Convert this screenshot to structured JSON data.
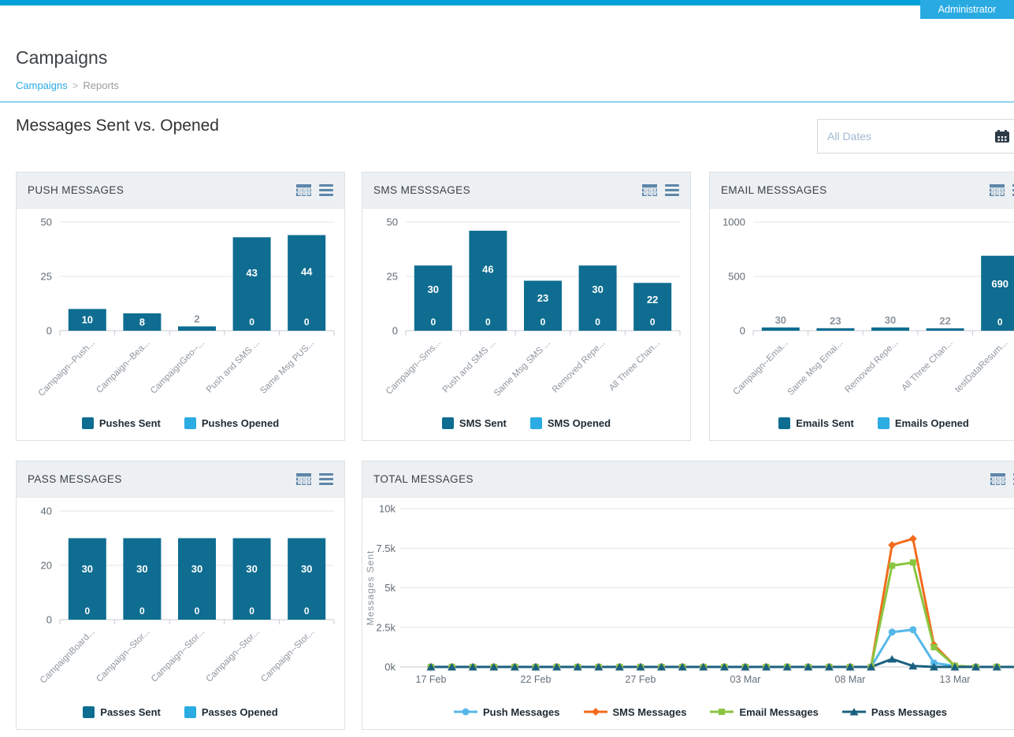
{
  "topbar": {
    "admin_label": "Administrator"
  },
  "page": {
    "title": "Campaigns",
    "breadcrumb": {
      "home": "Campaigns",
      "sep": ">",
      "current": "Reports"
    },
    "section_title": "Messages Sent vs. Opened"
  },
  "date_filter": {
    "value": "All Dates"
  },
  "colors": {
    "topstrip": "#00a3d9",
    "accent": "#29abe2",
    "bar_sent": "#0e6d91",
    "bar_opened": "#2bace2",
    "icon": "#5d86a9"
  },
  "chart_data": [
    {
      "id": "push",
      "type": "bar",
      "title": "PUSH MESSAGES",
      "categories": [
        "Campaign--Push...",
        "Campaign--Bea...",
        "CampaignGeo--...",
        "Push and SMS ...",
        "Same Msg PUS..."
      ],
      "series": [
        {
          "name": "Pushes Sent",
          "color": "#0e6d91",
          "values": [
            10,
            8,
            2,
            43,
            44
          ]
        },
        {
          "name": "Pushes Opened",
          "color": "#2bace2",
          "values": [
            0,
            0,
            0,
            0,
            0
          ]
        }
      ],
      "ylim": [
        0,
        50
      ],
      "yticks": [
        {
          "v": 0,
          "l": "0"
        },
        {
          "v": 25,
          "l": "25"
        },
        {
          "v": 50,
          "l": "50"
        }
      ]
    },
    {
      "id": "sms",
      "type": "bar",
      "title": "SMS MESSSAGES",
      "categories": [
        "Campaign--Sms...",
        "Push and SMS ...",
        "Same Msg SMS ...",
        "Removed Repe...",
        "All Three Chan..."
      ],
      "series": [
        {
          "name": "SMS Sent",
          "color": "#0e6d91",
          "values": [
            30,
            46,
            23,
            30,
            22
          ]
        },
        {
          "name": "SMS Opened",
          "color": "#2bace2",
          "values": [
            0,
            0,
            0,
            0,
            0
          ]
        }
      ],
      "ylim": [
        0,
        50
      ],
      "yticks": [
        {
          "v": 0,
          "l": "0"
        },
        {
          "v": 25,
          "l": "25"
        },
        {
          "v": 50,
          "l": "50"
        }
      ]
    },
    {
      "id": "email",
      "type": "bar",
      "title": "EMAIL MESSSAGES",
      "categories": [
        "Campaign--Ema...",
        "Same Msg Emai...",
        "Removed Repe...",
        "All Three Chan...",
        "testDataResum..."
      ],
      "series": [
        {
          "name": "Emails Sent",
          "color": "#0e6d91",
          "values": [
            30,
            23,
            30,
            22,
            690
          ]
        },
        {
          "name": "Emails Opened",
          "color": "#2bace2",
          "values": [
            0,
            0,
            0,
            0,
            0
          ]
        }
      ],
      "ylim": [
        0,
        1000
      ],
      "yticks": [
        {
          "v": 0,
          "l": "0"
        },
        {
          "v": 500,
          "l": "500"
        },
        {
          "v": 1000,
          "l": "1000"
        }
      ]
    },
    {
      "id": "pass",
      "type": "bar",
      "title": "PASS MESSAGES",
      "categories": [
        "CampaignBoard...",
        "Campaign--Stor...",
        "Campaign--Stor...",
        "Campaign--Stor...",
        "Campaign--Stor..."
      ],
      "series": [
        {
          "name": "Passes Sent",
          "color": "#0e6d91",
          "values": [
            30,
            30,
            30,
            30,
            30
          ]
        },
        {
          "name": "Passes Opened",
          "color": "#2bace2",
          "values": [
            0,
            0,
            0,
            0,
            0
          ]
        }
      ],
      "ylim": [
        0,
        40
      ],
      "yticks": [
        {
          "v": 0,
          "l": "0"
        },
        {
          "v": 20,
          "l": "20"
        },
        {
          "v": 40,
          "l": "40"
        }
      ]
    },
    {
      "id": "total",
      "type": "line",
      "title": "TOTAL MESSAGES",
      "ylabel": "Messages Sent",
      "ylim": [
        0,
        10000
      ],
      "yticks": [
        {
          "v": 0,
          "l": "0k"
        },
        {
          "v": 2500,
          "l": "2.5k"
        },
        {
          "v": 5000,
          "l": "5k"
        },
        {
          "v": 7500,
          "l": "7.5k"
        },
        {
          "v": 10000,
          "l": "10k"
        }
      ],
      "x": [
        "17 Feb",
        "18 Feb",
        "19 Feb",
        "20 Feb",
        "21 Feb",
        "22 Feb",
        "23 Feb",
        "24 Feb",
        "25 Feb",
        "26 Feb",
        "27 Feb",
        "28 Feb",
        "29 Feb",
        "01 Mar",
        "02 Mar",
        "03 Mar",
        "04 Mar",
        "05 Mar",
        "06 Mar",
        "07 Mar",
        "08 Mar",
        "09 Mar",
        "10 Mar",
        "11 Mar",
        "12 Mar",
        "13 Mar",
        "14 Mar",
        "15 Mar",
        "16 Mar"
      ],
      "tick_every": 5,
      "series": [
        {
          "name": "Push Messages",
          "color": "#56b8e9",
          "marker": "circle",
          "values": [
            0,
            0,
            0,
            0,
            0,
            0,
            0,
            0,
            0,
            0,
            0,
            0,
            0,
            0,
            0,
            0,
            0,
            0,
            0,
            0,
            0,
            0,
            2200,
            2350,
            250,
            60,
            0,
            0,
            0
          ]
        },
        {
          "name": "SMS Messages",
          "color": "#f26b1d",
          "marker": "diamond",
          "values": [
            0,
            0,
            0,
            0,
            0,
            0,
            0,
            0,
            0,
            0,
            0,
            0,
            0,
            0,
            0,
            0,
            0,
            0,
            0,
            0,
            0,
            0,
            7700,
            8100,
            1400,
            60,
            0,
            0,
            0
          ]
        },
        {
          "name": "Email Messages",
          "color": "#8bc540",
          "marker": "square",
          "values": [
            0,
            0,
            0,
            0,
            0,
            0,
            0,
            0,
            0,
            0,
            0,
            0,
            0,
            0,
            0,
            0,
            0,
            0,
            0,
            0,
            0,
            0,
            6400,
            6600,
            1250,
            60,
            0,
            0,
            0
          ]
        },
        {
          "name": "Pass Messages",
          "color": "#1a607f",
          "marker": "triangle",
          "values": [
            0,
            0,
            0,
            0,
            0,
            0,
            0,
            0,
            0,
            0,
            0,
            0,
            0,
            0,
            0,
            0,
            0,
            0,
            0,
            0,
            0,
            0,
            500,
            60,
            0,
            0,
            0,
            0,
            0
          ]
        }
      ]
    }
  ]
}
